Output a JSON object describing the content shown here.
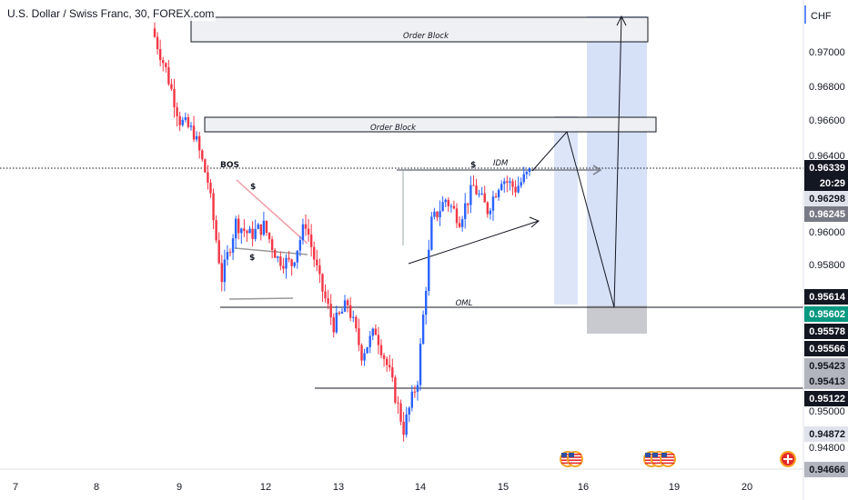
{
  "symbol_title": "U.S. Dollar / Swiss Franc, 30, FOREX.com",
  "currency_label": "CHF",
  "chart_data": {
    "type": "candlestick",
    "title": "U.S. Dollar / Swiss Franc, 30, FOREX.com",
    "y_unit": "CHF",
    "ylim": [
      0.9475,
      0.972
    ],
    "y_ticks": [
      "0.97000",
      "0.96800",
      "0.96600",
      "0.96400",
      "0.96000",
      "0.95800",
      "0.95000",
      "0.94800"
    ],
    "x_ticks": [
      "7",
      "8",
      "9",
      "12",
      "13",
      "14",
      "15",
      "16",
      "19",
      "20"
    ],
    "price_path": [
      {
        "x": "9",
        "close": 0.9713
      },
      {
        "x": "9",
        "close": 0.969
      },
      {
        "x": "9-12",
        "close": 0.9662
      },
      {
        "x": "9-12",
        "close": 0.9655
      },
      {
        "x": "9-12",
        "close": 0.9628
      },
      {
        "x": "12",
        "close": 0.9574
      },
      {
        "x": "12",
        "close": 0.9605
      },
      {
        "x": "12",
        "close": 0.9598
      },
      {
        "x": "12",
        "close": 0.9603
      },
      {
        "x": "12",
        "close": 0.9585
      },
      {
        "x": "12-13",
        "close": 0.9582
      },
      {
        "x": "13",
        "close": 0.9605
      },
      {
        "x": "13",
        "close": 0.9572
      },
      {
        "x": "13",
        "close": 0.9548
      },
      {
        "x": "13",
        "close": 0.956
      },
      {
        "x": "13",
        "close": 0.9532
      },
      {
        "x": "13-14",
        "close": 0.9545
      },
      {
        "x": "13-14",
        "close": 0.9521
      },
      {
        "x": "13-14",
        "close": 0.949
      },
      {
        "x": "14",
        "close": 0.9518
      },
      {
        "x": "14",
        "close": 0.9605
      },
      {
        "x": "14",
        "close": 0.9618
      },
      {
        "x": "14",
        "close": 0.9607
      },
      {
        "x": "14-15",
        "close": 0.9625
      },
      {
        "x": "14-15",
        "close": 0.9612
      },
      {
        "x": "15",
        "close": 0.963
      },
      {
        "x": "15",
        "close": 0.9624
      },
      {
        "x": "15",
        "close": 0.9633
      }
    ],
    "annotations": {
      "order_block_upper": {
        "label": "Order Block",
        "from": 0.9719,
        "to": 0.9709
      },
      "order_block_lower": {
        "label": "Order Block",
        "from": 0.9663,
        "to": 0.9654
      },
      "bos_label": "BOS",
      "idm_label": "IDM",
      "dollar_label": "$",
      "oml_label": "OML",
      "oml_level": 0.9561,
      "lower_level": 0.9512,
      "bos_level": 0.9634
    },
    "price_tags": [
      {
        "value": "0.96339",
        "sub": "20:29",
        "bg": "#131722",
        "fg": "#ffffff"
      },
      {
        "value": "0.96298",
        "bg": "#e0e3eb",
        "fg": "#131722"
      },
      {
        "value": "0.96245",
        "bg": "#787b86",
        "fg": "#ffffff"
      },
      {
        "value": "0.95614",
        "bg": "#131722",
        "fg": "#ffffff"
      },
      {
        "value": "0.95602",
        "bg": "#089981",
        "fg": "#ffffff"
      },
      {
        "value": "0.95578",
        "bg": "#131722",
        "fg": "#ffffff"
      },
      {
        "value": "0.95566",
        "bg": "#131722",
        "fg": "#ffffff"
      },
      {
        "value": "0.95423",
        "bg": "#b2b5be",
        "fg": "#131722"
      },
      {
        "value": "0.95413",
        "bg": "#b2b5be",
        "fg": "#131722"
      },
      {
        "value": "0.95122",
        "bg": "#131722",
        "fg": "#ffffff"
      },
      {
        "value": "0.94872",
        "bg": "#e0e3eb",
        "fg": "#131722"
      },
      {
        "value": "0.94666",
        "bg": "#b2b5be",
        "fg": "#131722"
      }
    ],
    "colors": {
      "up": "#2962ff",
      "down": "#f23645",
      "zone": "#d1dcf6",
      "target": "#b9c9f3"
    }
  },
  "event_icons": [
    "us-flag-icon",
    "us-flag-icon",
    "us-flag-icon",
    "us-flag-icon",
    "us-flag-icon",
    "swiss-flag-icon"
  ]
}
